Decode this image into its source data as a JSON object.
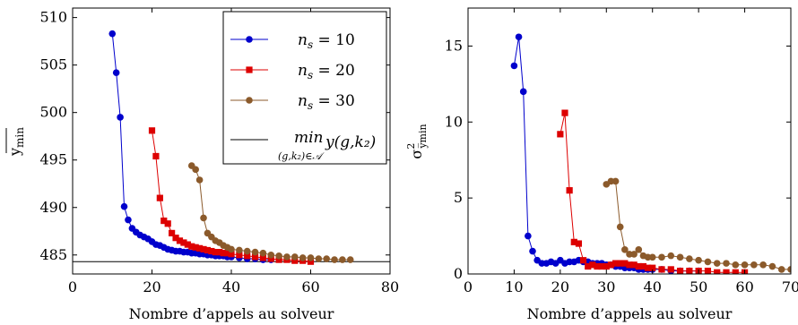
{
  "chart_data": [
    {
      "type": "line",
      "xlabel": "Nombre d’appels au solveur",
      "ylabel": "y̅min",
      "xlim": [
        0,
        80
      ],
      "ylim": [
        483,
        511
      ],
      "xticks": [
        0,
        20,
        40,
        60,
        80
      ],
      "yticks": [
        485,
        490,
        495,
        500,
        505,
        510
      ],
      "grid": false,
      "legend_position": "top-right",
      "series": [
        {
          "name": "ns = 10",
          "legend_label": {
            "var": "n",
            "sub": "s",
            "rest": " = 10"
          },
          "color": "#0000cc",
          "marker": "circle",
          "x": [
            10,
            11,
            12,
            13,
            14,
            15,
            16,
            17,
            18,
            19,
            20,
            21,
            22,
            23,
            24,
            25,
            26,
            27,
            28,
            29,
            30,
            31,
            32,
            33,
            34,
            35,
            36,
            37,
            38,
            39,
            40,
            42,
            44,
            46,
            48,
            50
          ],
          "y": [
            508.3,
            504.2,
            499.5,
            490.1,
            488.7,
            487.8,
            487.4,
            487.1,
            486.9,
            486.7,
            486.4,
            486.1,
            486.0,
            485.8,
            485.6,
            485.5,
            485.4,
            485.4,
            485.3,
            485.3,
            485.2,
            485.2,
            485.1,
            485.1,
            485.0,
            485.0,
            484.9,
            484.9,
            484.9,
            484.8,
            484.8,
            484.7,
            484.6,
            484.6,
            484.5,
            484.5
          ]
        },
        {
          "name": "ns = 20",
          "legend_label": {
            "var": "n",
            "sub": "s",
            "rest": " = 20"
          },
          "color": "#dd0000",
          "marker": "square",
          "x": [
            20,
            21,
            22,
            23,
            24,
            25,
            26,
            27,
            28,
            29,
            30,
            31,
            32,
            33,
            34,
            35,
            36,
            37,
            38,
            39,
            40,
            42,
            44,
            46,
            48,
            50,
            52,
            54,
            56,
            58,
            60
          ],
          "y": [
            498.1,
            495.4,
            491.0,
            488.6,
            488.3,
            487.3,
            486.8,
            486.5,
            486.3,
            486.1,
            485.9,
            485.8,
            485.7,
            485.6,
            485.5,
            485.4,
            485.3,
            485.3,
            485.2,
            485.2,
            485.1,
            485.0,
            484.9,
            484.8,
            484.7,
            484.6,
            484.5,
            484.5,
            484.4,
            484.4,
            484.3
          ]
        },
        {
          "name": "ns = 30",
          "legend_label": {
            "var": "n",
            "sub": "s",
            "rest": " = 30"
          },
          "color": "#8b5a2b",
          "marker": "circle",
          "x": [
            30,
            31,
            32,
            33,
            34,
            35,
            36,
            37,
            38,
            39,
            40,
            42,
            44,
            46,
            48,
            50,
            52,
            54,
            56,
            58,
            60,
            62,
            64,
            66,
            68,
            70
          ],
          "y": [
            494.4,
            494.0,
            492.9,
            488.9,
            487.3,
            486.9,
            486.5,
            486.3,
            486.0,
            485.8,
            485.6,
            485.5,
            485.4,
            485.3,
            485.2,
            485.0,
            484.9,
            484.8,
            484.8,
            484.7,
            484.7,
            484.6,
            484.6,
            484.5,
            484.5,
            484.5
          ]
        }
      ],
      "reference_line": {
        "value": 484.3,
        "legend_label": "min y(g,k2) over (g,k2) ∈ 𝒜",
        "legend_parts": {
          "op": "min",
          "sub": "(g,k₂)∈𝒜",
          "expr": "y(g,k₂)"
        },
        "color": "#000000"
      }
    },
    {
      "type": "line",
      "xlabel": "Nombre d’appels au solveur",
      "ylabel": "σ²ymin",
      "ylabel_parts": {
        "base": "σ",
        "sup": "2",
        "sub": "y̅min"
      },
      "xlim": [
        0,
        70
      ],
      "ylim": [
        0,
        17.5
      ],
      "xticks": [
        0,
        10,
        20,
        30,
        40,
        50,
        60,
        70
      ],
      "yticks": [
        0,
        5,
        10,
        15
      ],
      "grid": false,
      "legend_position": "none",
      "series": [
        {
          "name": "ns = 10",
          "color": "#0000cc",
          "marker": "circle",
          "x": [
            10,
            11,
            12,
            13,
            14,
            15,
            16,
            17,
            18,
            19,
            20,
            21,
            22,
            23,
            24,
            25,
            26,
            27,
            28,
            29,
            30,
            31,
            32,
            33,
            34,
            35,
            36,
            37,
            38,
            39,
            40,
            42,
            44,
            46,
            48,
            50
          ],
          "y": [
            13.7,
            15.6,
            12.0,
            2.5,
            1.5,
            0.9,
            0.7,
            0.7,
            0.8,
            0.7,
            0.9,
            0.7,
            0.8,
            0.8,
            0.9,
            0.8,
            0.8,
            0.7,
            0.7,
            0.7,
            0.6,
            0.6,
            0.5,
            0.5,
            0.4,
            0.4,
            0.4,
            0.3,
            0.3,
            0.3,
            0.3,
            0.3,
            0.2,
            0.2,
            0.2,
            0.2
          ]
        },
        {
          "name": "ns = 20",
          "color": "#dd0000",
          "marker": "square",
          "x": [
            20,
            21,
            22,
            23,
            24,
            25,
            26,
            27,
            28,
            29,
            30,
            31,
            32,
            33,
            34,
            35,
            36,
            37,
            38,
            39,
            40,
            42,
            44,
            46,
            48,
            50,
            52,
            54,
            56,
            58,
            60
          ],
          "y": [
            9.2,
            10.6,
            5.5,
            2.1,
            2.0,
            0.9,
            0.5,
            0.6,
            0.5,
            0.5,
            0.5,
            0.6,
            0.7,
            0.7,
            0.7,
            0.6,
            0.6,
            0.5,
            0.5,
            0.4,
            0.4,
            0.3,
            0.3,
            0.2,
            0.2,
            0.2,
            0.2,
            0.1,
            0.1,
            0.1,
            0.1
          ]
        },
        {
          "name": "ns = 30",
          "color": "#8b5a2b",
          "marker": "circle",
          "x": [
            30,
            31,
            32,
            33,
            34,
            35,
            36,
            37,
            38,
            39,
            40,
            42,
            44,
            46,
            48,
            50,
            52,
            54,
            56,
            58,
            60,
            62,
            64,
            66,
            68,
            70
          ],
          "y": [
            5.9,
            6.1,
            6.1,
            3.1,
            1.6,
            1.3,
            1.3,
            1.6,
            1.2,
            1.1,
            1.1,
            1.1,
            1.2,
            1.1,
            1.0,
            0.9,
            0.8,
            0.7,
            0.7,
            0.6,
            0.6,
            0.6,
            0.6,
            0.5,
            0.3,
            0.3
          ]
        }
      ]
    }
  ]
}
